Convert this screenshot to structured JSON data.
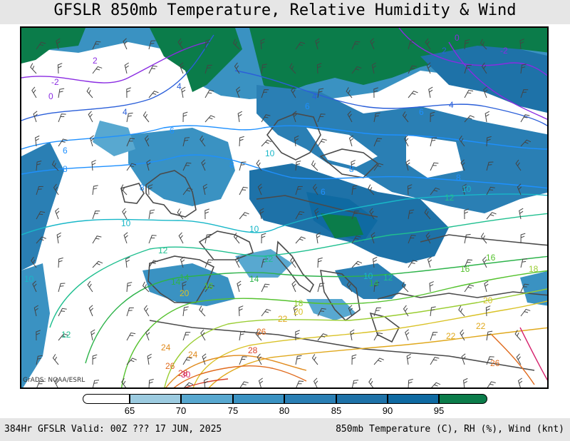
{
  "title": "GFSLR 850mb Temperature, Relative Humidity & Wind",
  "credit": "GrADS: NOAA/ESRL",
  "footer_left": "384Hr GFSLR Valid: 00Z ??? 17 JUN, 2025",
  "footer_right": "850mb Temperature (C), RH (%), Wind (knt)",
  "legend": {
    "thresholds": [
      "65",
      "70",
      "75",
      "80",
      "85",
      "90",
      "95"
    ],
    "colors": [
      "#ffffff",
      "#9ccbe0",
      "#58a8d0",
      "#3a92c2",
      "#2a7fb4",
      "#1e72a8",
      "#0f6aa2",
      "#0b7c4a"
    ]
  },
  "contour_labels": [
    {
      "text": "-2",
      "color": "#8a2be2"
    },
    {
      "text": "0",
      "color": "#8a2be2"
    },
    {
      "text": "2",
      "color": "#8a2be2"
    },
    {
      "text": "-2",
      "color": "#8a2be2"
    },
    {
      "text": "0",
      "color": "#8a2be2"
    },
    {
      "text": "2",
      "color": "#2b5fd9"
    },
    {
      "text": "4",
      "color": "#2b5fd9"
    },
    {
      "text": "4",
      "color": "#2b5fd9"
    },
    {
      "text": "4",
      "color": "#2b5fd9"
    },
    {
      "text": "4",
      "color": "#2b5fd9"
    },
    {
      "text": "6",
      "color": "#1e90ff"
    },
    {
      "text": "6",
      "color": "#1e90ff"
    },
    {
      "text": "6",
      "color": "#1e90ff"
    },
    {
      "text": "6",
      "color": "#1e90ff"
    },
    {
      "text": "6",
      "color": "#1e90ff"
    },
    {
      "text": "8",
      "color": "#1e90ff"
    },
    {
      "text": "8",
      "color": "#1e90ff"
    },
    {
      "text": "8",
      "color": "#1e90ff"
    },
    {
      "text": "8",
      "color": "#1e90ff"
    },
    {
      "text": "8",
      "color": "#1e90ff"
    },
    {
      "text": "10",
      "color": "#18b7c8"
    },
    {
      "text": "10",
      "color": "#18b7c8"
    },
    {
      "text": "10",
      "color": "#18b7c8"
    },
    {
      "text": "10",
      "color": "#18b7c8"
    },
    {
      "text": "10",
      "color": "#18b7c8"
    },
    {
      "text": "10",
      "color": "#18b7c8"
    },
    {
      "text": "12",
      "color": "#1fbf8f"
    },
    {
      "text": "12",
      "color": "#1fbf8f"
    },
    {
      "text": "12",
      "color": "#1fbf8f"
    },
    {
      "text": "12",
      "color": "#1fbf8f"
    },
    {
      "text": "12",
      "color": "#1fbf8f"
    },
    {
      "text": "14",
      "color": "#2db34a"
    },
    {
      "text": "14",
      "color": "#2db34a"
    },
    {
      "text": "14",
      "color": "#2db34a"
    },
    {
      "text": "14",
      "color": "#2db34a"
    },
    {
      "text": "16",
      "color": "#55c22e"
    },
    {
      "text": "16",
      "color": "#55c22e"
    },
    {
      "text": "16",
      "color": "#55c22e"
    },
    {
      "text": "18",
      "color": "#9acd32"
    },
    {
      "text": "18",
      "color": "#9acd32"
    },
    {
      "text": "20",
      "color": "#d9c227"
    },
    {
      "text": "20",
      "color": "#d9c227"
    },
    {
      "text": "20",
      "color": "#d9c227"
    },
    {
      "text": "22",
      "color": "#e0a81c"
    },
    {
      "text": "22",
      "color": "#e0a81c"
    },
    {
      "text": "22",
      "color": "#e0a81c"
    },
    {
      "text": "24",
      "color": "#e08a1c"
    },
    {
      "text": "24",
      "color": "#e08a1c"
    },
    {
      "text": "26",
      "color": "#e06a1c"
    },
    {
      "text": "26",
      "color": "#e06a1c"
    },
    {
      "text": "26",
      "color": "#e06a1c"
    },
    {
      "text": "28",
      "color": "#d9402a"
    },
    {
      "text": "28",
      "color": "#d9402a"
    },
    {
      "text": "30",
      "color": "#d6246e"
    }
  ]
}
